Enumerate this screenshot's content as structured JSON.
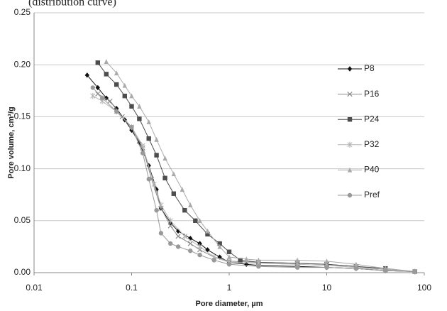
{
  "chart_data": {
    "type": "line",
    "title": "(distribution curve)",
    "x_label": "Pore diameter, µm",
    "y_label": "Pore volume, cm³/g",
    "xscale": "log",
    "xlim": [
      0.01,
      100
    ],
    "xticks": [
      0.01,
      0.1,
      1,
      10,
      100
    ],
    "ylim": [
      0,
      0.25
    ],
    "yticks": [
      {
        "value": 0,
        "label": "0.00"
      },
      {
        "value": 0.05,
        "label": "0.05"
      },
      {
        "value": 0.1,
        "label": "0.10"
      },
      {
        "value": 0.15,
        "label": "0.15"
      },
      {
        "value": 0.2,
        "label": "0.20"
      },
      {
        "value": 0.25,
        "label": "0.25"
      }
    ],
    "grid": true,
    "legend": "right",
    "series": [
      {
        "name": "P8",
        "color": "#111111",
        "marker": "diamond",
        "x": [
          0.035,
          0.045,
          0.055,
          0.07,
          0.085,
          0.1,
          0.12,
          0.15,
          0.18,
          0.2,
          0.25,
          0.3,
          0.4,
          0.5,
          0.6,
          0.8,
          1,
          1.5,
          2,
          5,
          10,
          20,
          40,
          80
        ],
        "values": [
          0.19,
          0.178,
          0.168,
          0.158,
          0.147,
          0.137,
          0.125,
          0.103,
          0.08,
          0.062,
          0.048,
          0.04,
          0.033,
          0.028,
          0.022,
          0.015,
          0.01,
          0.008,
          0.007,
          0.006,
          0.005,
          0.004,
          0.002,
          0.001
        ]
      },
      {
        "name": "P16",
        "color": "#8a8a8a",
        "marker": "x",
        "x": [
          0.045,
          0.06,
          0.08,
          0.1,
          0.13,
          0.16,
          0.2,
          0.25,
          0.3,
          0.4,
          0.5,
          0.7,
          1,
          2,
          5,
          10,
          20,
          40,
          80
        ],
        "values": [
          0.172,
          0.165,
          0.15,
          0.14,
          0.12,
          0.09,
          0.062,
          0.045,
          0.035,
          0.028,
          0.022,
          0.015,
          0.011,
          0.01,
          0.009,
          0.008,
          0.006,
          0.003,
          0.001
        ]
      },
      {
        "name": "P24",
        "color": "#4d4d4d",
        "marker": "square",
        "x": [
          0.045,
          0.055,
          0.07,
          0.085,
          0.1,
          0.12,
          0.15,
          0.18,
          0.22,
          0.27,
          0.35,
          0.45,
          0.6,
          0.8,
          1,
          1.3,
          2,
          5,
          10,
          20,
          40,
          80
        ],
        "values": [
          0.202,
          0.191,
          0.181,
          0.17,
          0.16,
          0.148,
          0.129,
          0.113,
          0.091,
          0.076,
          0.06,
          0.05,
          0.037,
          0.028,
          0.02,
          0.012,
          0.01,
          0.009,
          0.008,
          0.006,
          0.004,
          0.001
        ]
      },
      {
        "name": "P32",
        "color": "#b5b5b5",
        "marker": "star",
        "x": [
          0.04,
          0.05,
          0.07,
          0.1,
          0.13,
          0.17,
          0.2,
          0.25,
          0.35,
          0.5,
          0.7,
          1,
          2,
          5,
          10,
          20,
          40,
          80
        ],
        "values": [
          0.17,
          0.165,
          0.155,
          0.14,
          0.122,
          0.085,
          0.065,
          0.05,
          0.035,
          0.025,
          0.015,
          0.01,
          0.009,
          0.008,
          0.007,
          0.005,
          0.003,
          0.001
        ]
      },
      {
        "name": "P40",
        "color": "#aaaaaa",
        "marker": "triangle",
        "x": [
          0.055,
          0.07,
          0.085,
          0.1,
          0.12,
          0.15,
          0.18,
          0.22,
          0.27,
          0.33,
          0.4,
          0.5,
          0.6,
          0.8,
          1,
          1.5,
          2,
          5,
          10,
          20,
          40,
          80
        ],
        "values": [
          0.203,
          0.192,
          0.18,
          0.17,
          0.16,
          0.145,
          0.128,
          0.11,
          0.095,
          0.08,
          0.065,
          0.05,
          0.04,
          0.025,
          0.015,
          0.013,
          0.012,
          0.012,
          0.011,
          0.008,
          0.004,
          0.001
        ]
      },
      {
        "name": "Pref",
        "color": "#999999",
        "marker": "circle",
        "x": [
          0.04,
          0.05,
          0.07,
          0.1,
          0.13,
          0.15,
          0.18,
          0.2,
          0.25,
          0.3,
          0.4,
          0.5,
          0.7,
          1,
          2,
          5,
          10,
          20,
          40,
          80
        ],
        "values": [
          0.178,
          0.168,
          0.155,
          0.14,
          0.115,
          0.09,
          0.06,
          0.038,
          0.028,
          0.025,
          0.021,
          0.017,
          0.012,
          0.008,
          0.006,
          0.005,
          0.005,
          0.004,
          0.002,
          0.001
        ]
      }
    ]
  }
}
